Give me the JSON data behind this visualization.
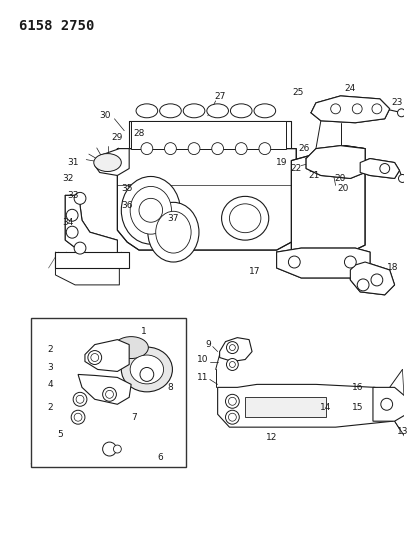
{
  "title": "6158 2750",
  "bg": "#ffffff",
  "lc": "#1a1a1a",
  "tc": "#1a1a1a",
  "fig_w": 4.1,
  "fig_h": 5.33,
  "dpi": 100,
  "lw": 0.7,
  "lfs": 6.5,
  "lfs2": 7.5
}
